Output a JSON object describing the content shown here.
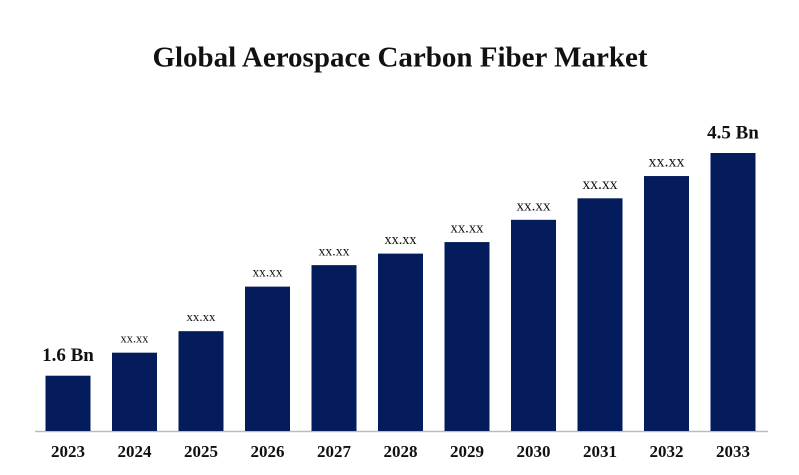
{
  "chart_data": {
    "type": "bar",
    "title": "Global Aerospace Carbon Fiber Market",
    "categories": [
      "2023",
      "2024",
      "2025",
      "2026",
      "2027",
      "2028",
      "2029",
      "2030",
      "2031",
      "2032",
      "2033"
    ],
    "values": [
      1.6,
      1.9,
      2.18,
      2.76,
      3.04,
      3.19,
      3.34,
      3.63,
      3.91,
      4.2,
      4.5
    ],
    "value_labels": [
      "1.6 Bn",
      "xx.xx",
      "xx.xx",
      "xx.xx",
      "xx.xx",
      "xx.xx",
      "xx.xx",
      "xx.xx",
      "xx.xx",
      "xx.xx",
      "4.5 Bn"
    ],
    "color": "#041c5c",
    "ylim": [
      0.88,
      5
    ]
  }
}
